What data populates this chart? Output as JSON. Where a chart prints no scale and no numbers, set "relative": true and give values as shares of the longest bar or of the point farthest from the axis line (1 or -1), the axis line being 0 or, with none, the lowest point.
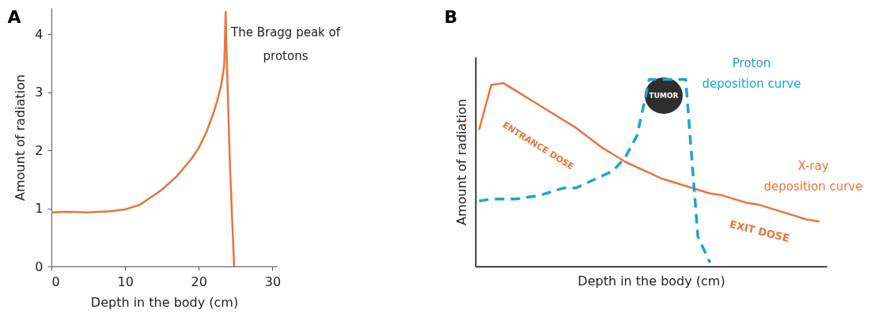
{
  "chart_data": [
    {
      "type": "line",
      "title": "A",
      "xlabel": "Depth in the body (cm)",
      "ylabel": "Amount of radiation",
      "x": [
        0,
        2,
        5,
        8,
        10,
        12,
        15,
        17,
        19,
        20,
        21,
        22,
        22.5,
        23,
        23.45,
        23.65,
        23.8,
        24.2,
        24.5,
        24.8
      ],
      "series": [
        {
          "color": "#e8743b",
          "values": [
            0.93,
            0.94,
            0.93,
            0.95,
            0.98,
            1.06,
            1.32,
            1.55,
            1.85,
            2.04,
            2.3,
            2.64,
            2.85,
            3.09,
            3.45,
            4.38,
            3.6,
            1.86,
            0.9,
            0
          ]
        }
      ],
      "xlim": [
        0,
        30.6
      ],
      "ylim": [
        0,
        4.45
      ],
      "xticks": [
        0,
        10,
        20,
        30
      ],
      "yticks": [
        0,
        1,
        2,
        3,
        4
      ],
      "line_style": "solid",
      "annotations": [
        "The Bragg peak of protons"
      ]
    },
    {
      "type": "line",
      "title": "B",
      "xlabel": "Depth in the body (cm)",
      "ylabel": "Amount of radiation",
      "relative": true,
      "categories": [
        null,
        null,
        null,
        null,
        null,
        null,
        null,
        null,
        null,
        null,
        null,
        null,
        null,
        null,
        null,
        null,
        null,
        null,
        null,
        null,
        null,
        null,
        null,
        null,
        null,
        null,
        null,
        null,
        null
      ],
      "series": [
        {
          "name": "X-ray deposition curve",
          "color": "#e8743b",
          "line_style": "solid",
          "values": [
            0.73,
            0.97,
            0.98,
            0.94,
            0.9,
            0.86,
            0.82,
            0.78,
            0.74,
            0.69,
            0.64,
            0.6,
            0.56,
            0.53,
            0.5,
            0.47,
            0.45,
            0.43,
            0.41,
            0.39,
            0.38,
            0.36,
            0.34,
            0.33,
            0.31,
            0.29,
            0.27,
            0.25,
            0.24
          ]
        },
        {
          "name": "Proton deposition curve",
          "color": "#1ba3d6",
          "line_style": "dashed",
          "values": [
            0.35,
            0.36,
            0.36,
            0.36,
            0.37,
            0.38,
            0.4,
            0.42,
            0.42,
            0.45,
            0.48,
            0.51,
            0.58,
            0.7,
            1,
            1,
            1,
            1,
            0.16,
            0.02,
            null,
            null,
            null,
            null,
            null,
            null,
            null,
            null,
            null
          ]
        }
      ],
      "annotations": [
        "ENTRANCE DOSE",
        "TUMOR",
        "EXIT DOSE"
      ]
    }
  ]
}
